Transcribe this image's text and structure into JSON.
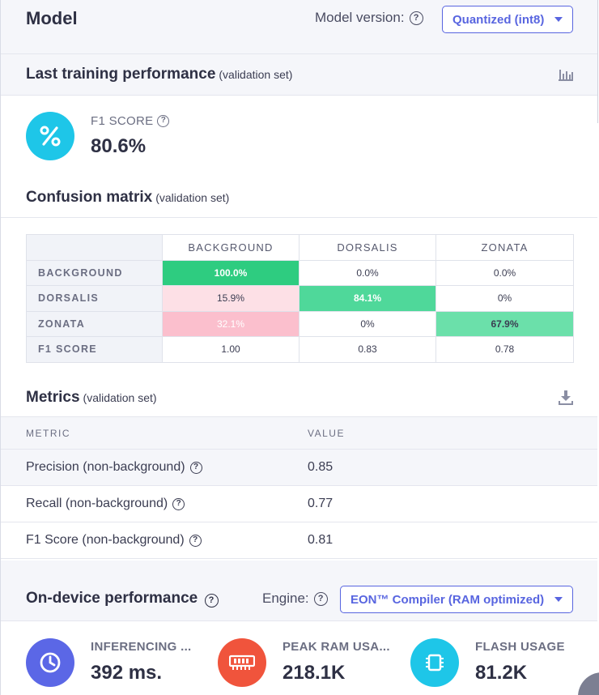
{
  "header": {
    "title": "Model",
    "model_version_label": "Model version:",
    "model_version_value": "Quantized (int8)"
  },
  "training": {
    "title": "Last training performance",
    "subtitle": "(validation set)",
    "f1_label": "F1 SCORE",
    "f1_value": "80.6%",
    "f1_icon": "percent-icon"
  },
  "confusion": {
    "title": "Confusion matrix",
    "subtitle": "(validation set)",
    "columns": [
      "BACKGROUND",
      "DORSALIS",
      "ZONATA"
    ],
    "rows": [
      {
        "label": "BACKGROUND",
        "cells": [
          "100.0%",
          "0.0%",
          "0.0%"
        ]
      },
      {
        "label": "DORSALIS",
        "cells": [
          "15.9%",
          "84.1%",
          "0%"
        ]
      },
      {
        "label": "ZONATA",
        "cells": [
          "32.1%",
          "0%",
          "67.9%"
        ]
      },
      {
        "label": "F1 SCORE",
        "cells": [
          "1.00",
          "0.83",
          "0.78"
        ]
      }
    ],
    "colors": {
      "correct_100": "#2ecc80",
      "correct_84": "#4fd89a",
      "correct_68": "#6be0aa",
      "wrong_16": "#fde0e6",
      "wrong_32": "#fbbfcd"
    }
  },
  "metrics": {
    "title": "Metrics",
    "subtitle": "(validation set)",
    "col_metric": "METRIC",
    "col_value": "VALUE",
    "rows": [
      {
        "name": "Precision (non-background)",
        "value": "0.85"
      },
      {
        "name": "Recall (non-background)",
        "value": "0.77"
      },
      {
        "name": "F1 Score (non-background)",
        "value": "0.81"
      }
    ]
  },
  "device": {
    "title": "On-device performance",
    "engine_label": "Engine:",
    "engine_value": "EON™ Compiler (RAM optimized)",
    "cards": [
      {
        "label": "INFERENCING ...",
        "value": "392 ms.",
        "icon": "clock-icon",
        "color": "#5b67e6"
      },
      {
        "label": "PEAK RAM USA...",
        "value": "218.1K",
        "icon": "ram-chip-icon",
        "color": "#f0543c"
      },
      {
        "label": "FLASH USAGE",
        "value": "81.2K",
        "icon": "flash-chip-icon",
        "color": "#1ec6e8"
      }
    ]
  },
  "theme": {
    "accent": "#5865e0",
    "f1_circle": "#1ec6e8"
  }
}
